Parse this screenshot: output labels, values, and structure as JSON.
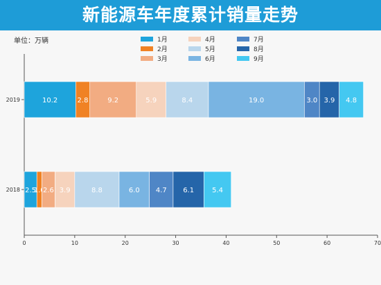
{
  "header": {
    "title": "新能源车年度累计销量走势"
  },
  "unit_label": "单位：万辆",
  "chart_data": {
    "type": "bar",
    "orientation": "horizontal",
    "stacked": true,
    "categories": [
      "2019",
      "2018"
    ],
    "series": [
      {
        "name": "1月",
        "color": "#1ea4dc",
        "values": [
          10.2,
          2.5
        ]
      },
      {
        "name": "2月",
        "color": "#f08224",
        "values": [
          2.8,
          1.0
        ]
      },
      {
        "name": "3月",
        "color": "#f2ac82",
        "values": [
          9.2,
          2.6
        ]
      },
      {
        "name": "4月",
        "color": "#f6d3bd",
        "values": [
          5.9,
          3.9
        ]
      },
      {
        "name": "5月",
        "color": "#b9d6ec",
        "values": [
          8.4,
          8.8
        ]
      },
      {
        "name": "6月",
        "color": "#79b4e2",
        "values": [
          19.0,
          6.0
        ]
      },
      {
        "name": "7月",
        "color": "#4f86c6",
        "values": [
          3.0,
          4.7
        ]
      },
      {
        "name": "8月",
        "color": "#2565a9",
        "values": [
          3.9,
          6.1
        ]
      },
      {
        "name": "9月",
        "color": "#44c8f1",
        "values": [
          4.8,
          5.4
        ]
      }
    ],
    "data_labels": [
      [
        "10.2",
        "2.8",
        "9.2",
        "5.9",
        "8.4",
        "19.0",
        "3.0",
        "3.9",
        "4.8"
      ],
      [
        "2.5",
        "1.0",
        "2.6",
        "3.9",
        "8.8",
        "6.0",
        "4.7",
        "6.1",
        "5.4"
      ]
    ],
    "xlim": [
      0,
      70
    ],
    "xticks": [
      "0",
      "10",
      "20",
      "30",
      "40",
      "50",
      "60",
      "70"
    ],
    "legend_position": "top-center"
  }
}
